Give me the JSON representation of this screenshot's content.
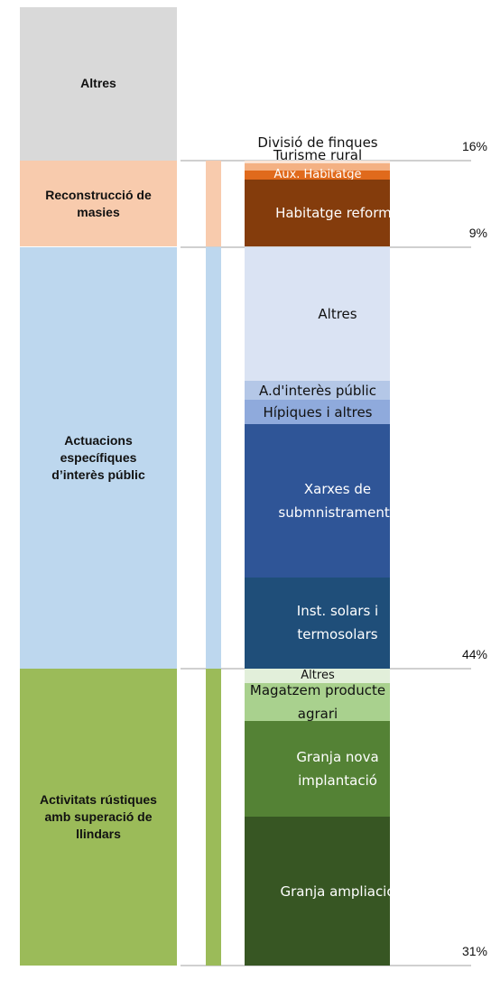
{
  "chart_data": {
    "type": "stacked",
    "categories": [
      "Altres",
      "Reconstrucció de masies",
      "Actuacions específiques d’interès públic",
      "Activitats rústiques amb superació de llindars"
    ],
    "values": [
      16,
      9,
      44,
      31
    ],
    "value_labels": [
      "16%",
      "9%",
      "44%",
      "31%"
    ],
    "colors": [
      "#d9d9d9",
      "#f8cbad",
      "#bdd7ee",
      "#9bbb59"
    ],
    "ylim": [
      0,
      100
    ],
    "segments": [
      [],
      [
        {
          "name": "Divisió de finques",
          "value": 0.3,
          "color": "#fbe5d6"
        },
        {
          "name": "Turisme rural",
          "value": 0.7,
          "color": "#f4b183"
        },
        {
          "name": "Aux. Habitatge",
          "value": 1.0,
          "color": "#e06a1c"
        },
        {
          "name": "Habitatge reforma",
          "value": 7.0,
          "color": "#843c0c"
        }
      ],
      [
        {
          "name": "Altres",
          "value": 14,
          "color": "#dae3f3"
        },
        {
          "name": "A.d'interès públic",
          "value": 2,
          "color": "#b4c7e7"
        },
        {
          "name": "Hípiques i altres",
          "value": 2.5,
          "color": "#8faadc"
        },
        {
          "name": "Xarxes de submnistraments",
          "value": 16,
          "color": "#2f5597"
        },
        {
          "name": "Inst. solars i termosolars",
          "value": 9.5,
          "color": "#1f4e79"
        }
      ],
      [
        {
          "name": "Altres",
          "value": 1.5,
          "color": "#e2efda"
        },
        {
          "name": "Magatzem producte agrari",
          "value": 4,
          "color": "#a9d18e"
        },
        {
          "name": "Granja nova implantació",
          "value": 10,
          "color": "#548235"
        },
        {
          "name": "Granja ampliació",
          "value": 15.5,
          "color": "#375623"
        }
      ]
    ]
  }
}
